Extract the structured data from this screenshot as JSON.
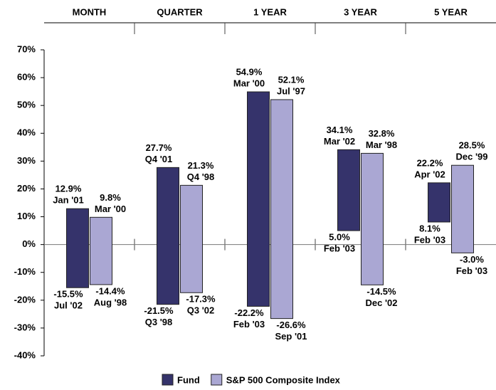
{
  "chart_data": {
    "type": "range-bar",
    "categories": [
      "MONTH",
      "QUARTER",
      "1 YEAR",
      "3 YEAR",
      "5 YEAR"
    ],
    "series": [
      {
        "name": "Fund",
        "color": "#35336b",
        "high": [
          12.9,
          27.7,
          54.9,
          34.1,
          22.2
        ],
        "high_value_labels": [
          "12.9%",
          "27.7%",
          "54.9%",
          "34.1%",
          "22.2%"
        ],
        "high_dates": [
          "Jan '01",
          "Q4 '01",
          "Mar '00",
          "Mar '02",
          "Apr '02"
        ],
        "low": [
          -15.5,
          -21.5,
          -22.2,
          5.0,
          8.1
        ],
        "low_value_labels": [
          "-15.5%",
          "-21.5%",
          "-22.2%",
          "5.0%",
          "8.1%"
        ],
        "low_dates": [
          "Jul '02",
          "Q3 '98",
          "Feb '03",
          "Feb '03",
          "Feb '03"
        ]
      },
      {
        "name": "S&P 500 Composite Index",
        "color": "#aaa7d3",
        "high": [
          9.8,
          21.3,
          52.1,
          32.8,
          28.5
        ],
        "high_value_labels": [
          "9.8%",
          "21.3%",
          "52.1%",
          "32.8%",
          "28.5%"
        ],
        "high_dates": [
          "Mar '00",
          "Q4 '98",
          "Jul '97",
          "Mar '98",
          "Dec '99"
        ],
        "low": [
          -14.4,
          -17.3,
          -26.6,
          -14.5,
          -3.0
        ],
        "low_value_labels": [
          "-14.4%",
          "-17.3%",
          "-26.6%",
          "-14.5%",
          "-3.0%"
        ],
        "low_dates": [
          "Aug '98",
          "Q3 '02",
          "Sep '01",
          "Dec '02",
          "Feb '03"
        ]
      }
    ],
    "ylim": [
      -40,
      70
    ],
    "yticks": [
      {
        "value": -40,
        "label": "-40%"
      },
      {
        "value": -30,
        "label": "-30%"
      },
      {
        "value": -20,
        "label": "-20%"
      },
      {
        "value": -10,
        "label": "-10%"
      },
      {
        "value": 0,
        "label": "0%"
      },
      {
        "value": 10,
        "label": "10%"
      },
      {
        "value": 20,
        "label": "20%"
      },
      {
        "value": 30,
        "label": "30%"
      },
      {
        "value": 40,
        "label": "40%"
      },
      {
        "value": 50,
        "label": "50%"
      },
      {
        "value": 60,
        "label": "60%"
      },
      {
        "value": 70,
        "label": "70%"
      }
    ]
  }
}
